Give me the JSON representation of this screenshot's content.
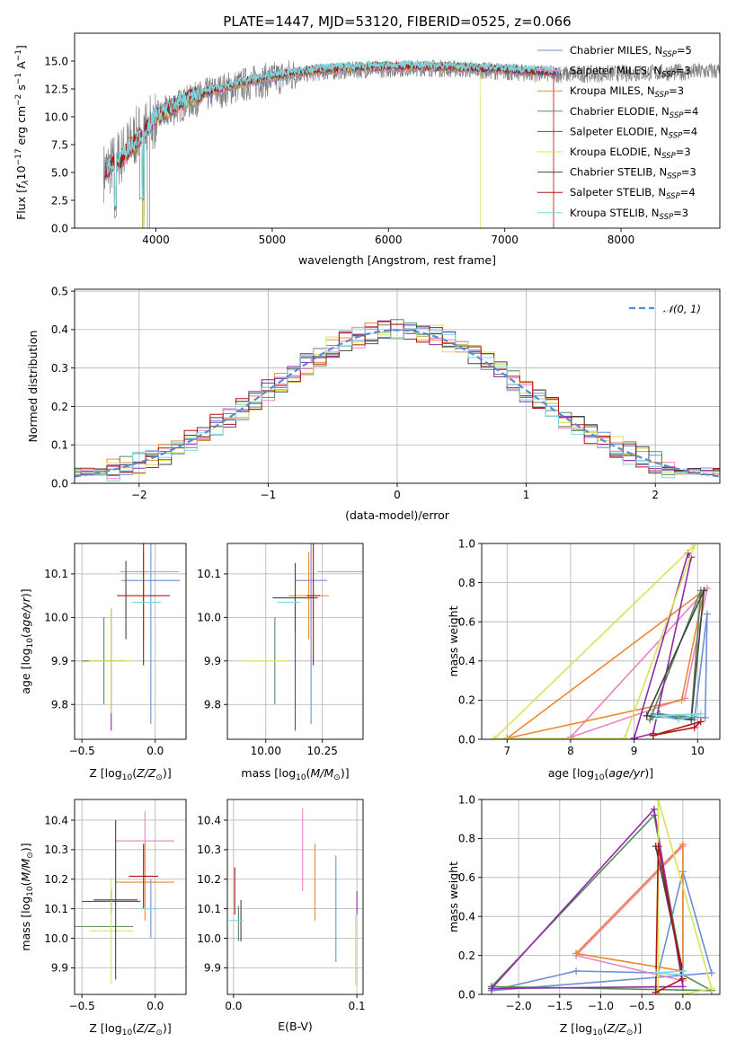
{
  "colors": {
    "Chabrier MILES": "#6d8fd6",
    "Salpeter MILES": "#ee82c0",
    "Kroupa MILES": "#e88a32",
    "Chabrier ELODIE": "#5a8a5a",
    "Salpeter ELODIE": "#8e2aa8",
    "Kroupa ELODIE": "#d8e35a",
    "Chabrier STELIB": "#444444",
    "Salpeter STELIB": "#b01515",
    "Kroupa STELIB": "#7fd8e0"
  },
  "chart_data": [
    {
      "id": "spectrum",
      "type": "line",
      "title": "PLATE=1447, MJD=53120, FIBERID=0525, z=0.066",
      "xlabel": "wavelength [Angstrom, rest frame]",
      "ylabel": "Flux [f_λ10^-17 erg cm^-2 s^-1 A^-1]",
      "xlim": [
        3300,
        8850
      ],
      "ylim": [
        0,
        17.5
      ],
      "xticks": [
        4000,
        5000,
        6000,
        7000,
        8000
      ],
      "yticks": [
        0.0,
        2.5,
        5.0,
        7.5,
        10.0,
        12.5,
        15.0
      ],
      "xtick_labels": [
        "4000",
        "5000",
        "6000",
        "7000",
        "8000"
      ],
      "ytick_labels": [
        "0.0",
        "2.5",
        "5.0",
        "7.5",
        "10.0",
        "12.5",
        "15.0"
      ],
      "legend_position": "right",
      "legend": [
        {
          "label": "Chabrier MILES, N",
          "sub": "SSP",
          "suffix": "=5"
        },
        {
          "label": "Salpeter MILES, N",
          "sub": "SSP",
          "suffix": "=3"
        },
        {
          "label": "Kroupa MILES, N",
          "sub": "SSP",
          "suffix": "=3"
        },
        {
          "label": "Chabrier ELODIE, N",
          "sub": "SSP",
          "suffix": "=4"
        },
        {
          "label": "Salpeter ELODIE, N",
          "sub": "SSP",
          "suffix": "=4"
        },
        {
          "label": "Kroupa ELODIE, N",
          "sub": "SSP",
          "suffix": "=3"
        },
        {
          "label": "Chabrier STELIB, N",
          "sub": "SSP",
          "suffix": "=3"
        },
        {
          "label": "Salpeter STELIB, N",
          "sub": "SSP",
          "suffix": "=4"
        },
        {
          "label": "Kroupa STELIB, N",
          "sub": "SSP",
          "suffix": "=3"
        }
      ],
      "observed_envelope": {
        "x": [
          3550,
          3700,
          3850,
          4000,
          4200,
          4500,
          4800,
          5100,
          5400,
          5700,
          6000,
          6300,
          6600,
          6900,
          7200,
          7500,
          8000,
          8500,
          8800
        ],
        "y": [
          5.0,
          6.5,
          8.5,
          9.8,
          11.0,
          12.2,
          13.0,
          13.6,
          14.0,
          14.2,
          14.3,
          14.4,
          14.3,
          14.1,
          13.9,
          13.8,
          13.9,
          14.0,
          14.1
        ]
      },
      "model_envelope": {
        "x": [
          3550,
          3700,
          3850,
          4000,
          4200,
          4500,
          4800,
          5100,
          5400,
          5700,
          6000,
          6300,
          6600,
          6900,
          7200,
          7400
        ],
        "y": [
          5.0,
          6.2,
          8.0,
          9.9,
          11.3,
          12.4,
          13.2,
          13.8,
          14.2,
          14.4,
          14.5,
          14.5,
          14.4,
          14.3,
          14.1,
          14.0
        ]
      },
      "grid": false
    },
    {
      "id": "residuals",
      "type": "histogram",
      "xlabel": "(data-model)/error",
      "ylabel": "Normed distribution",
      "xlim": [
        -2.5,
        2.5
      ],
      "ylim": [
        0,
        0.505
      ],
      "xticks": [
        -2,
        -1,
        0,
        1,
        2
      ],
      "xtick_labels": [
        "−2",
        "−1",
        "0",
        "1",
        "2"
      ],
      "yticks": [
        0.0,
        0.1,
        0.2,
        0.3,
        0.4,
        0.5
      ],
      "ytick_labels": [
        "0.0",
        "0.1",
        "0.2",
        "0.3",
        "0.4",
        "0.5"
      ],
      "legend": [
        {
          "label": "𝒩(0, 1)"
        }
      ],
      "legend_position": "top-right",
      "bin_width": 0.1,
      "grid": true
    },
    {
      "id": "age_vs_z",
      "type": "errorbar",
      "xlabel": "Z [log10(Z/Z⊙)]",
      "ylabel": "age [log10(age/yr)]",
      "xlim": [
        -0.55,
        0.21
      ],
      "ylim": [
        9.72,
        10.17
      ],
      "xticks": [
        -0.5,
        0.0
      ],
      "xtick_labels": [
        "−0.5",
        "0.0"
      ],
      "yticks": [
        9.8,
        9.9,
        10.0,
        10.1
      ],
      "ytick_labels": [
        "9.8",
        "9.9",
        "10.0",
        "10.1"
      ],
      "grid": true,
      "points": [
        {
          "model": "Chabrier MILES",
          "x": -0.03,
          "xerr": 0.2,
          "y": 10.085,
          "yerr": 0.33
        },
        {
          "model": "Salpeter MILES",
          "x": -0.04,
          "xerr": 0.2,
          "y": 10.105,
          "yerr": 0.0
        },
        {
          "model": "Kroupa MILES",
          "x": -0.08,
          "xerr": 0.18,
          "y": 10.05,
          "yerr": 0.1
        },
        {
          "model": "Chabrier ELODIE",
          "x": -0.35,
          "xerr": 0.15,
          "y": 9.9,
          "yerr": 0.1
        },
        {
          "model": "Salpeter ELODIE",
          "x": -0.3,
          "xerr": 0.0,
          "y": 9.88,
          "yerr": 0.14
        },
        {
          "model": "Kroupa ELODIE",
          "x": -0.3,
          "xerr": 0.15,
          "y": 9.9,
          "yerr": 0.12
        },
        {
          "model": "Chabrier STELIB",
          "x": -0.2,
          "xerr": 0.0,
          "y": 10.04,
          "yerr": 0.09
        },
        {
          "model": "Salpeter STELIB",
          "x": -0.08,
          "xerr": 0.18,
          "y": 10.05,
          "yerr": 0.16
        },
        {
          "model": "Kroupa STELIB",
          "x": -0.06,
          "xerr": 0.1,
          "y": 10.035,
          "yerr": 0.0
        }
      ]
    },
    {
      "id": "age_vs_mass",
      "type": "errorbar",
      "xlabel": "mass [log10(M/M⊙)]",
      "ylabel": "",
      "xlim": [
        9.83,
        10.43
      ],
      "ylim": [
        9.72,
        10.17
      ],
      "xticks": [
        10.0,
        10.25
      ],
      "xtick_labels": [
        "10.00",
        "10.25"
      ],
      "yticks": [
        9.8,
        9.9,
        10.0,
        10.1
      ],
      "ytick_labels": [
        "9.8",
        "9.9",
        "10.0",
        "10.1"
      ],
      "grid": true,
      "points": [
        {
          "model": "Chabrier MILES",
          "x": 10.2,
          "xerr": 0.07,
          "y": 10.085,
          "yerr": 0.33
        },
        {
          "model": "Salpeter MILES",
          "x": 10.33,
          "xerr": 0.1,
          "y": 10.105,
          "yerr": 0.0
        },
        {
          "model": "Kroupa MILES",
          "x": 10.19,
          "xerr": 0.09,
          "y": 10.05,
          "yerr": 0.1
        },
        {
          "model": "Chabrier ELODIE",
          "x": 10.04,
          "xerr": 0.0,
          "y": 9.9,
          "yerr": 0.1
        },
        {
          "model": "Salpeter ELODIE",
          "x": 10.13,
          "xerr": 0.0,
          "y": 9.88,
          "yerr": 0.14
        },
        {
          "model": "Kroupa ELODIE",
          "x": 10.0,
          "xerr": 0.1,
          "y": 9.9,
          "yerr": 0.0
        },
        {
          "model": "Chabrier STELIB",
          "x": 10.13,
          "xerr": 0.1,
          "y": 10.045,
          "yerr": 0.08
        },
        {
          "model": "Salpeter STELIB",
          "x": 10.21,
          "xerr": 0.03,
          "y": 10.05,
          "yerr": 0.16
        },
        {
          "model": "Kroupa STELIB",
          "x": 10.1,
          "xerr": 0.05,
          "y": 10.035,
          "yerr": 0.0
        }
      ]
    },
    {
      "id": "weight_vs_age",
      "type": "line",
      "xlabel": "age [log10(age/yr)]",
      "ylabel": "mass weight",
      "xlim": [
        6.6,
        10.35
      ],
      "ylim": [
        0,
        1.0
      ],
      "xticks": [
        7,
        8,
        9,
        10
      ],
      "xtick_labels": [
        "7",
        "8",
        "9",
        "10"
      ],
      "yticks": [
        0.0,
        0.2,
        0.4,
        0.6,
        0.8,
        1.0
      ],
      "ytick_labels": [
        "0.0",
        "0.2",
        "0.4",
        "0.6",
        "0.8",
        "1.0"
      ],
      "grid": true,
      "series": [
        {
          "model": "Chabrier MILES",
          "x": [
            9.3,
            9.95,
            10.15,
            10.12,
            9.3
          ],
          "y": [
            0.13,
            0.1,
            0.64,
            0.11,
            0.13
          ]
        },
        {
          "model": "Salpeter MILES",
          "x": [
            8.0,
            9.8,
            10.15,
            8.0
          ],
          "y": [
            0.01,
            0.21,
            0.77,
            0.01
          ]
        },
        {
          "model": "Kroupa MILES",
          "x": [
            7.0,
            9.75,
            10.1,
            7.0
          ],
          "y": [
            0.005,
            0.2,
            0.76,
            0.005
          ]
        },
        {
          "model": "Chabrier ELODIE",
          "x": [
            9.4,
            9.9,
            10.05,
            9.25,
            9.4
          ],
          "y": [
            0.13,
            0.11,
            0.76,
            0.1,
            0.13
          ]
        },
        {
          "model": "Salpeter ELODIE",
          "x": [
            9.0,
            9.85,
            9.9,
            9.3,
            9.0
          ],
          "y": [
            0.005,
            0.95,
            0.93,
            0.03,
            0.005
          ]
        },
        {
          "model": "Kroupa ELODIE",
          "x": [
            6.8,
            8.85,
            9.95,
            6.8
          ],
          "y": [
            0.003,
            0.005,
            0.99,
            0.003
          ]
        },
        {
          "model": "Chabrier STELIB",
          "x": [
            9.2,
            9.9,
            10.1,
            9.2
          ],
          "y": [
            0.12,
            0.1,
            0.76,
            0.12
          ]
        },
        {
          "model": "Salpeter STELIB",
          "x": [
            9.3,
            9.95,
            10.05,
            9.3
          ],
          "y": [
            0.02,
            0.06,
            0.09,
            0.02
          ]
        },
        {
          "model": "Kroupa STELIB",
          "x": [
            9.35,
            9.7,
            10.05,
            9.35
          ],
          "y": [
            0.12,
            0.1,
            0.13,
            0.12
          ]
        }
      ]
    },
    {
      "id": "mass_vs_z",
      "type": "errorbar",
      "xlabel": "Z [log10(Z/Z⊙)]",
      "ylabel": "mass [log10(M/M⊙)]",
      "xlim": [
        -0.55,
        0.21
      ],
      "ylim": [
        9.81,
        10.47
      ],
      "xticks": [
        -0.5,
        0.0
      ],
      "xtick_labels": [
        "−0.5",
        "0.0"
      ],
      "yticks": [
        9.9,
        10.0,
        10.1,
        10.2,
        10.3,
        10.4
      ],
      "ytick_labels": [
        "9.9",
        "10.0",
        "10.1",
        "10.2",
        "10.3",
        "10.4"
      ],
      "grid": true,
      "points": [
        {
          "model": "Chabrier MILES",
          "x": -0.03,
          "xerr": 0.0,
          "y": 10.1,
          "yerr": 0.1
        },
        {
          "model": "Salpeter MILES",
          "x": -0.07,
          "xerr": 0.2,
          "y": 10.33,
          "yerr": 0.1
        },
        {
          "model": "Kroupa MILES",
          "x": -0.07,
          "xerr": 0.2,
          "y": 10.19,
          "yerr": 0.13
        },
        {
          "model": "Chabrier ELODIE",
          "x": -0.35,
          "xerr": 0.2,
          "y": 10.04,
          "yerr": 0.0
        },
        {
          "model": "Salpeter ELODIE",
          "x": -0.3,
          "xerr": 0.2,
          "y": 10.125,
          "yerr": 0.04
        },
        {
          "model": "Kroupa ELODIE",
          "x": -0.3,
          "xerr": 0.15,
          "y": 10.025,
          "yerr": 0.18
        },
        {
          "model": "Chabrier STELIB",
          "x": -0.27,
          "xerr": 0.15,
          "y": 10.13,
          "yerr": 0.27
        },
        {
          "model": "Salpeter STELIB",
          "x": -0.08,
          "xerr": 0.1,
          "y": 10.21,
          "yerr": 0.11
        },
        {
          "model": "Kroupa STELIB",
          "x": -0.04,
          "xerr": 0.06,
          "y": 10.1,
          "yerr": 0.0
        }
      ]
    },
    {
      "id": "mass_vs_ebv",
      "type": "errorbar",
      "xlabel": "E(B-V)",
      "ylabel": "",
      "xlim": [
        -0.005,
        0.105
      ],
      "ylim": [
        9.81,
        10.47
      ],
      "xticks": [
        0.0,
        0.1
      ],
      "xtick_labels": [
        "0.0",
        "0.1"
      ],
      "yticks": [
        9.9,
        10.0,
        10.1,
        10.2,
        10.3,
        10.4
      ],
      "ytick_labels": [
        "9.9",
        "10.0",
        "10.1",
        "10.2",
        "10.3",
        "10.4"
      ],
      "grid": true,
      "points": [
        {
          "model": "Chabrier MILES",
          "x": 0.083,
          "y": 10.1,
          "yerr": 0.18
        },
        {
          "model": "Salpeter MILES",
          "x": 0.056,
          "y": 10.3,
          "yerr": 0.14
        },
        {
          "model": "Kroupa MILES",
          "x": 0.066,
          "y": 10.19,
          "yerr": 0.13
        },
        {
          "model": "Chabrier ELODIE",
          "x": 0.004,
          "y": 10.05,
          "yerr": 0.06
        },
        {
          "model": "Salpeter ELODIE",
          "x": 0.1,
          "y": 10.12,
          "yerr": 0.04
        },
        {
          "model": "Kroupa ELODIE",
          "x": 0.099,
          "y": 9.96,
          "yerr": 0.12
        },
        {
          "model": "Chabrier STELIB",
          "x": 0.006,
          "y": 10.06,
          "yerr": 0.07
        },
        {
          "model": "Salpeter STELIB",
          "x": 0.001,
          "y": 10.16,
          "yerr": 0.08
        },
        {
          "model": "Kroupa STELIB",
          "x": 0.002,
          "y": 10.06,
          "yerr": 0.0
        }
      ]
    },
    {
      "id": "weight_vs_z",
      "type": "line",
      "xlabel": "Z [log10(Z/Z⊙)]",
      "ylabel": "mass weight",
      "xlim": [
        -2.45,
        0.45
      ],
      "ylim": [
        0,
        1.0
      ],
      "xticks": [
        -2.0,
        -1.5,
        -1.0,
        -0.5,
        0.0
      ],
      "xtick_labels": [
        "−2.0",
        "−1.5",
        "−1.0",
        "−0.5",
        "0.0"
      ],
      "yticks": [
        0.0,
        0.2,
        0.4,
        0.6,
        0.8,
        1.0
      ],
      "ytick_labels": [
        "0.0",
        "0.2",
        "0.4",
        "0.6",
        "0.8",
        "1.0"
      ],
      "grid": true,
      "series": [
        {
          "model": "Chabrier MILES",
          "x": [
            -2.33,
            -1.3,
            -0.3,
            0.0,
            0.35,
            -2.33
          ],
          "y": [
            0.02,
            0.12,
            0.11,
            0.63,
            0.11,
            0.02
          ]
        },
        {
          "model": "Salpeter MILES",
          "x": [
            -1.3,
            0.0,
            0.0,
            -1.3
          ],
          "y": [
            0.2,
            0.76,
            0.07,
            0.2
          ]
        },
        {
          "model": "Kroupa MILES",
          "x": [
            -1.3,
            0.0,
            0.0,
            -1.3
          ],
          "y": [
            0.21,
            0.77,
            0.12,
            0.21
          ]
        },
        {
          "model": "Chabrier ELODIE",
          "x": [
            -2.33,
            -0.35,
            0.0,
            0.35,
            -2.33
          ],
          "y": [
            0.04,
            0.92,
            0.1,
            0.02,
            0.04
          ]
        },
        {
          "model": "Salpeter ELODIE",
          "x": [
            -2.33,
            -0.35,
            0.0,
            -2.33
          ],
          "y": [
            0.03,
            0.95,
            0.04,
            0.03
          ]
        },
        {
          "model": "Kroupa ELODIE",
          "x": [
            -0.3,
            -0.3,
            0.35,
            0.0,
            -0.3
          ],
          "y": [
            0.0,
            1.0,
            0.03,
            0.0,
            0.0
          ]
        },
        {
          "model": "Chabrier STELIB",
          "x": [
            -0.33,
            0.0,
            0.0,
            -0.33
          ],
          "y": [
            0.76,
            0.12,
            0.1,
            0.76
          ]
        },
        {
          "model": "Salpeter STELIB",
          "x": [
            -0.33,
            -0.3,
            0.0,
            -0.33
          ],
          "y": [
            0.01,
            0.76,
            0.08,
            0.01
          ]
        },
        {
          "model": "Kroupa STELIB",
          "x": [
            -0.33,
            0.0,
            0.0,
            -0.33
          ],
          "y": [
            0.11,
            0.12,
            0.1,
            0.11
          ]
        }
      ]
    }
  ]
}
